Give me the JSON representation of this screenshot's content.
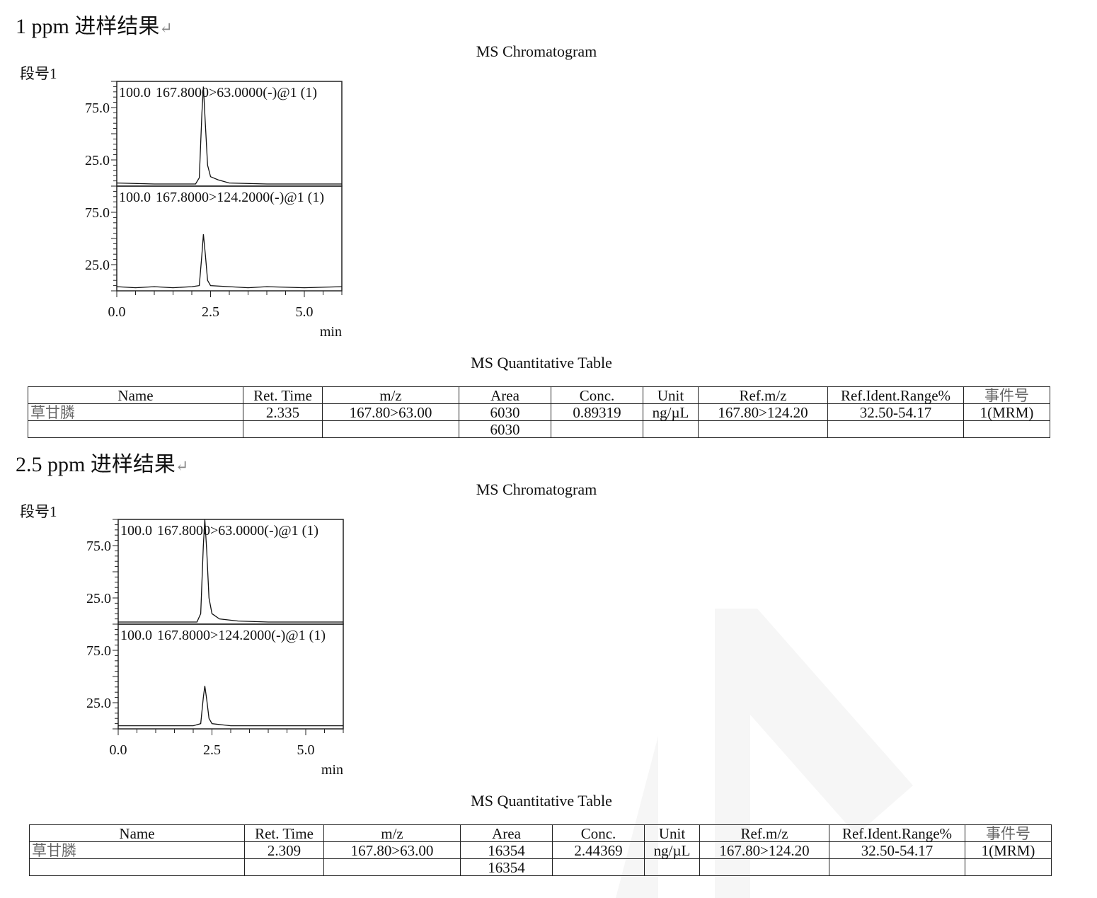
{
  "sections": [
    {
      "heading": "1 ppm 进样结果",
      "return_mark": "↵",
      "chromatogram_title": "MS Chromatogram",
      "segment_label": "段号1",
      "quant_title": "MS Quantitative Table",
      "table": {
        "headers": [
          "Name",
          "Ret. Time",
          "m/z",
          "Area",
          "Conc.",
          "Unit",
          "Ref.m/z",
          "Ref.Ident.Range%",
          "事件号"
        ],
        "rows": [
          [
            "草甘膦",
            "2.335",
            "167.80>63.00",
            "6030",
            "0.89319",
            "ng/µL",
            "167.80>124.20",
            "32.50-54.17",
            "1(MRM)"
          ],
          [
            "",
            "",
            "",
            "6030",
            "",
            "",
            "",
            "",
            ""
          ]
        ]
      }
    },
    {
      "heading": "2.5 ppm 进样结果",
      "return_mark": "↵",
      "chromatogram_title": "MS Chromatogram",
      "segment_label": "段号1",
      "quant_title": "MS Quantitative Table",
      "table": {
        "headers": [
          "Name",
          "Ret. Time",
          "m/z",
          "Area",
          "Conc.",
          "Unit",
          "Ref.m/z",
          "Ref.Ident.Range%",
          "事件号"
        ],
        "rows": [
          [
            "草甘膦",
            "2.309",
            "167.80>63.00",
            "16354",
            "2.44369",
            "ng/µL",
            "167.80>124.20",
            "32.50-54.17",
            "1(MRM)"
          ],
          [
            "",
            "",
            "",
            "16354",
            "",
            "",
            "",
            "",
            ""
          ]
        ]
      }
    }
  ],
  "chart_data": [
    {
      "type": "line",
      "xlabel": "min",
      "xlim": [
        0,
        6
      ],
      "x_ticks": [
        "0.0",
        "2.5",
        "5.0"
      ],
      "panels": [
        {
          "max_label": "100.0",
          "trace_label": "167.8000>63.0000(-)@1 (1)",
          "ylim": [
            0,
            100
          ],
          "y_ticks": [
            "75.0",
            "25.0"
          ],
          "points": [
            [
              0,
              3
            ],
            [
              1.0,
              2
            ],
            [
              1.8,
              2
            ],
            [
              2.1,
              2
            ],
            [
              2.2,
              8
            ],
            [
              2.27,
              70
            ],
            [
              2.31,
              95
            ],
            [
              2.36,
              60
            ],
            [
              2.42,
              20
            ],
            [
              2.5,
              9
            ],
            [
              2.7,
              6
            ],
            [
              3.0,
              3
            ],
            [
              4,
              2
            ],
            [
              6,
              2
            ]
          ]
        },
        {
          "max_label": "100.0",
          "trace_label": "167.8000>124.2000(-)@1 (1)",
          "ylim": [
            0,
            100
          ],
          "y_ticks": [
            "75.0",
            "25.0"
          ],
          "points": [
            [
              0,
              4
            ],
            [
              0.5,
              3
            ],
            [
              1.0,
              4
            ],
            [
              1.5,
              3
            ],
            [
              2.0,
              4
            ],
            [
              2.2,
              5
            ],
            [
              2.27,
              35
            ],
            [
              2.31,
              54
            ],
            [
              2.36,
              35
            ],
            [
              2.42,
              10
            ],
            [
              2.5,
              5
            ],
            [
              3.0,
              4
            ],
            [
              3.5,
              3
            ],
            [
              4,
              4
            ],
            [
              5,
              3
            ],
            [
              6,
              4
            ]
          ]
        }
      ]
    },
    {
      "type": "line",
      "xlabel": "min",
      "xlim": [
        0,
        6
      ],
      "x_ticks": [
        "0.0",
        "2.5",
        "5.0"
      ],
      "panels": [
        {
          "max_label": "100.0",
          "trace_label": "167.8000>63.0000(-)@1 (1)",
          "ylim": [
            0,
            100
          ],
          "y_ticks": [
            "75.0",
            "25.0"
          ],
          "points": [
            [
              0,
              2
            ],
            [
              1.5,
              2
            ],
            [
              2.1,
              2
            ],
            [
              2.2,
              10
            ],
            [
              2.27,
              75
            ],
            [
              2.31,
              100
            ],
            [
              2.36,
              70
            ],
            [
              2.42,
              25
            ],
            [
              2.5,
              10
            ],
            [
              2.7,
              5
            ],
            [
              3.2,
              3
            ],
            [
              4,
              2
            ],
            [
              6,
              2
            ]
          ]
        },
        {
          "max_label": "100.0",
          "trace_label": "167.8000>124.2000(-)@1 (1)",
          "ylim": [
            0,
            100
          ],
          "y_ticks": [
            "75.0",
            "25.0"
          ],
          "points": [
            [
              0,
              3
            ],
            [
              1.0,
              3
            ],
            [
              2.0,
              3
            ],
            [
              2.2,
              5
            ],
            [
              2.27,
              30
            ],
            [
              2.31,
              41
            ],
            [
              2.36,
              28
            ],
            [
              2.42,
              10
            ],
            [
              2.5,
              5
            ],
            [
              3.0,
              3
            ],
            [
              4,
              3
            ],
            [
              6,
              3
            ]
          ]
        }
      ]
    }
  ]
}
